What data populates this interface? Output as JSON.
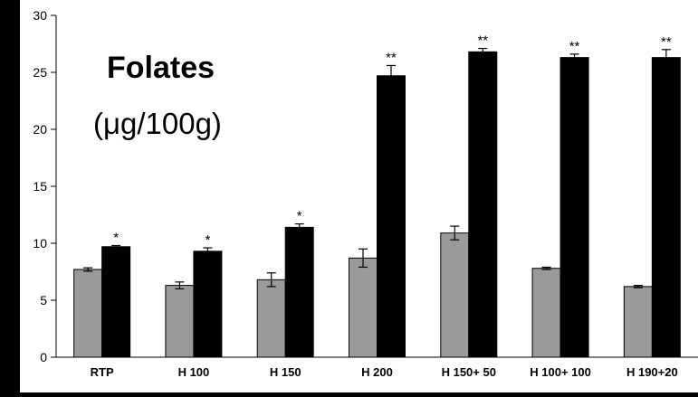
{
  "chart_data": {
    "type": "bar",
    "title": "Folates",
    "unit": "(μg/100g)",
    "categories": [
      "RTP",
      "H 100",
      "H 150",
      "H 200",
      "H 150+ 50",
      "H 100+ 100",
      "H 190+20"
    ],
    "series": [
      {
        "values": [
          7.7,
          6.3,
          6.8,
          8.7,
          10.9,
          7.8,
          6.2
        ],
        "errors": [
          0.15,
          0.3,
          0.6,
          0.8,
          0.6,
          0.1,
          0.1
        ],
        "color": "#9a9a9a"
      },
      {
        "values": [
          9.7,
          9.3,
          11.4,
          24.7,
          26.8,
          26.3,
          26.3
        ],
        "errors": [
          0.1,
          0.3,
          0.3,
          0.9,
          0.3,
          0.3,
          0.7
        ],
        "color": "#000000"
      }
    ],
    "significance": [
      "*",
      "*",
      "*",
      "**",
      "**",
      "**",
      "**"
    ],
    "yticks": [
      0,
      5,
      10,
      15,
      20,
      25,
      30
    ],
    "ylim": [
      0,
      30
    ],
    "grid": false,
    "legend": "none"
  },
  "colors": {
    "background": "#000000",
    "plot": "#ffffff"
  }
}
